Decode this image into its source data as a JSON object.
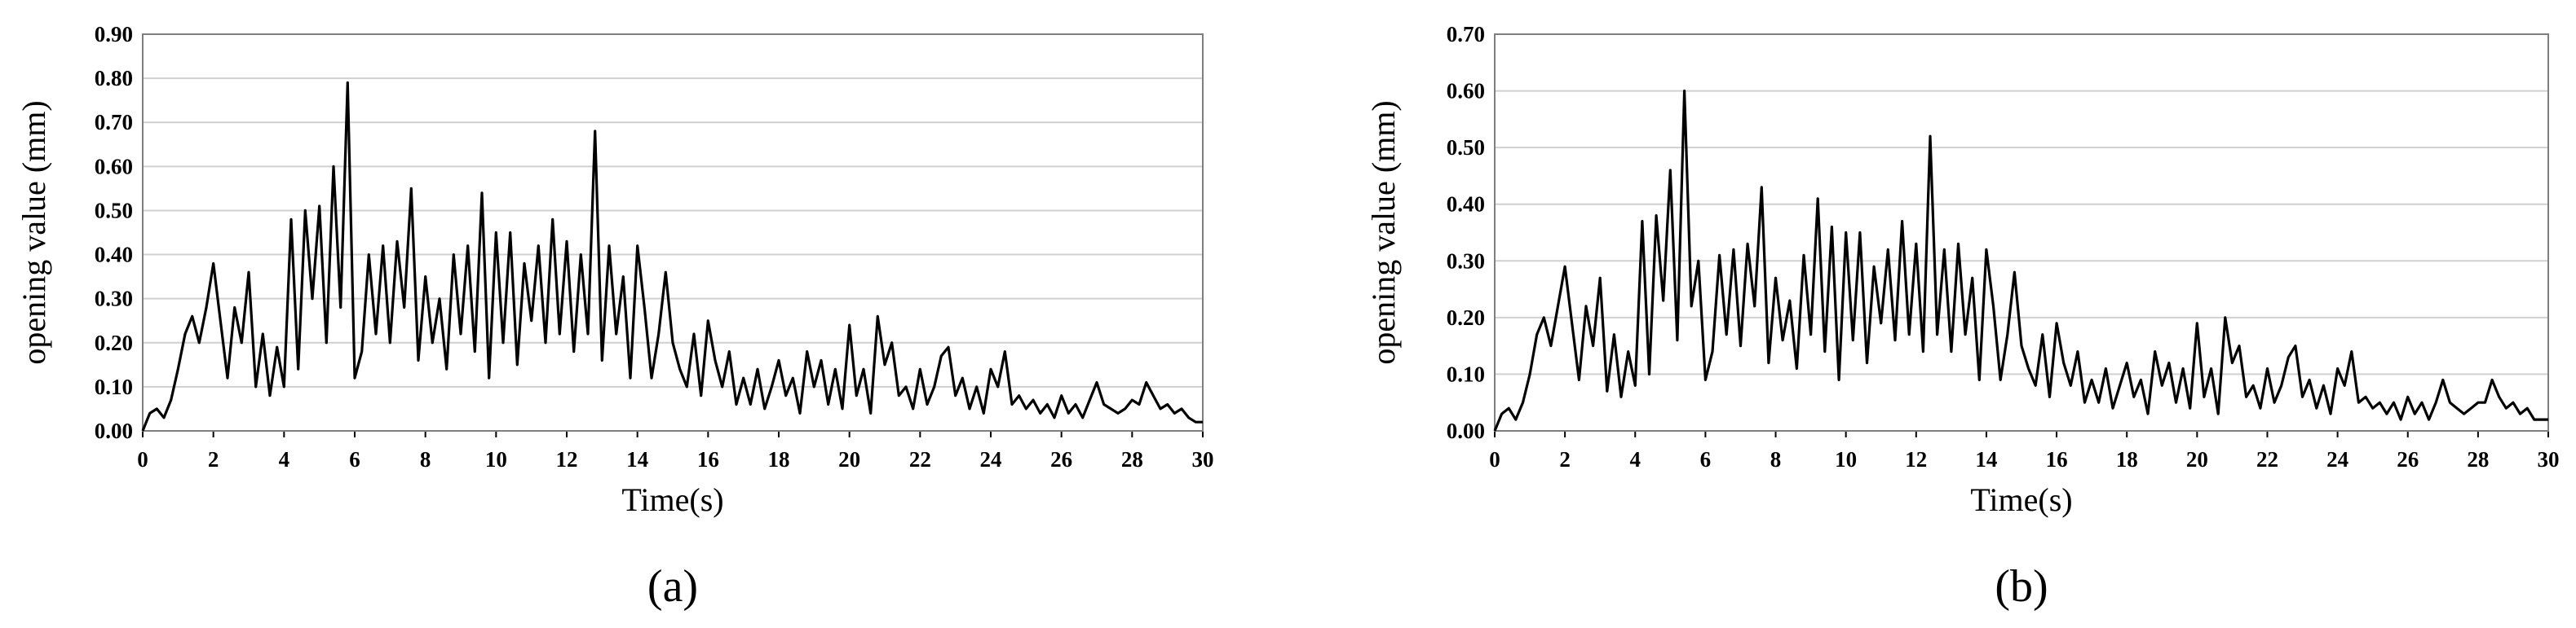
{
  "chart_data": [
    {
      "type": "line",
      "panel_label": "(a)",
      "xlabel": "Time(s)",
      "ylabel": "opening value (mm)",
      "xlim": [
        0,
        30
      ],
      "ylim": [
        0,
        0.9
      ],
      "xticks": [
        0,
        2,
        4,
        6,
        8,
        10,
        12,
        14,
        16,
        18,
        20,
        22,
        24,
        26,
        28,
        30
      ],
      "yticks": [
        "0.00",
        "0.10",
        "0.20",
        "0.30",
        "0.40",
        "0.50",
        "0.60",
        "0.70",
        "0.80",
        "0.90"
      ],
      "grid": "horizontal",
      "legend": "none",
      "color": "#000000",
      "series": [
        {
          "x": [
            0,
            0.2,
            0.4,
            0.6,
            0.8,
            1.0,
            1.2,
            1.4,
            1.6,
            1.8,
            2.0,
            2.2,
            2.4,
            2.6,
            2.8,
            3.0,
            3.2,
            3.4,
            3.6,
            3.8,
            4.0,
            4.2,
            4.4,
            4.6,
            4.8,
            5.0,
            5.2,
            5.4,
            5.6,
            5.8,
            6.0,
            6.2,
            6.4,
            6.6,
            6.8,
            7.0,
            7.2,
            7.4,
            7.6,
            7.8,
            8.0,
            8.2,
            8.4,
            8.6,
            8.8,
            9.0,
            9.2,
            9.4,
            9.6,
            9.8,
            10.0,
            10.2,
            10.4,
            10.6,
            10.8,
            11.0,
            11.2,
            11.4,
            11.6,
            11.8,
            12.0,
            12.2,
            12.4,
            12.6,
            12.8,
            13.0,
            13.2,
            13.4,
            13.6,
            13.8,
            14.0,
            14.2,
            14.4,
            14.6,
            14.8,
            15.0,
            15.2,
            15.4,
            15.6,
            15.8,
            16.0,
            16.2,
            16.4,
            16.6,
            16.8,
            17.0,
            17.2,
            17.4,
            17.6,
            17.8,
            18.0,
            18.2,
            18.4,
            18.6,
            18.8,
            19.0,
            19.2,
            19.4,
            19.6,
            19.8,
            20.0,
            20.2,
            20.4,
            20.6,
            20.8,
            21.0,
            21.2,
            21.4,
            21.6,
            21.8,
            22.0,
            22.2,
            22.4,
            22.6,
            22.8,
            23.0,
            23.2,
            23.4,
            23.6,
            23.8,
            24.0,
            24.2,
            24.4,
            24.6,
            24.8,
            25.0,
            25.2,
            25.4,
            25.6,
            25.8,
            26.0,
            26.2,
            26.4,
            26.6,
            26.8,
            27.0,
            27.2,
            27.4,
            27.6,
            27.8,
            28.0,
            28.2,
            28.4,
            28.6,
            28.8,
            29.0,
            29.2,
            29.4,
            29.6,
            29.8,
            30.0
          ],
          "y": [
            0.0,
            0.04,
            0.05,
            0.03,
            0.07,
            0.14,
            0.22,
            0.26,
            0.2,
            0.28,
            0.38,
            0.25,
            0.12,
            0.28,
            0.2,
            0.36,
            0.1,
            0.22,
            0.08,
            0.19,
            0.1,
            0.48,
            0.14,
            0.5,
            0.3,
            0.51,
            0.2,
            0.6,
            0.28,
            0.79,
            0.12,
            0.18,
            0.4,
            0.22,
            0.42,
            0.2,
            0.43,
            0.28,
            0.55,
            0.16,
            0.35,
            0.2,
            0.3,
            0.14,
            0.4,
            0.22,
            0.42,
            0.18,
            0.54,
            0.12,
            0.45,
            0.2,
            0.45,
            0.15,
            0.38,
            0.25,
            0.42,
            0.2,
            0.48,
            0.22,
            0.43,
            0.18,
            0.4,
            0.22,
            0.68,
            0.16,
            0.42,
            0.22,
            0.35,
            0.12,
            0.42,
            0.28,
            0.12,
            0.22,
            0.36,
            0.2,
            0.14,
            0.1,
            0.22,
            0.08,
            0.25,
            0.16,
            0.1,
            0.18,
            0.06,
            0.12,
            0.06,
            0.14,
            0.05,
            0.1,
            0.16,
            0.08,
            0.12,
            0.04,
            0.18,
            0.1,
            0.16,
            0.06,
            0.14,
            0.05,
            0.24,
            0.08,
            0.14,
            0.04,
            0.26,
            0.15,
            0.2,
            0.08,
            0.1,
            0.05,
            0.14,
            0.06,
            0.1,
            0.17,
            0.19,
            0.08,
            0.12,
            0.05,
            0.1,
            0.04,
            0.14,
            0.1,
            0.18,
            0.06,
            0.08,
            0.05,
            0.07,
            0.04,
            0.06,
            0.03,
            0.08,
            0.04,
            0.06,
            0.03,
            0.07,
            0.11,
            0.06,
            0.05,
            0.04,
            0.05,
            0.07,
            0.06,
            0.11,
            0.08,
            0.05,
            0.06,
            0.04,
            0.05,
            0.03,
            0.02,
            0.02
          ]
        }
      ]
    },
    {
      "type": "line",
      "panel_label": "(b)",
      "xlabel": "Time(s)",
      "ylabel": "opening value (mm)",
      "xlim": [
        0,
        30
      ],
      "ylim": [
        0,
        0.7
      ],
      "xticks": [
        0,
        2,
        4,
        6,
        8,
        10,
        12,
        14,
        16,
        18,
        20,
        22,
        24,
        26,
        28,
        30
      ],
      "yticks": [
        "0.00",
        "0.10",
        "0.20",
        "0.30",
        "0.40",
        "0.50",
        "0.60",
        "0.70"
      ],
      "grid": "horizontal",
      "legend": "none",
      "color": "#000000",
      "series": [
        {
          "x": [
            0,
            0.2,
            0.4,
            0.6,
            0.8,
            1.0,
            1.2,
            1.4,
            1.6,
            1.8,
            2.0,
            2.2,
            2.4,
            2.6,
            2.8,
            3.0,
            3.2,
            3.4,
            3.6,
            3.8,
            4.0,
            4.2,
            4.4,
            4.6,
            4.8,
            5.0,
            5.2,
            5.4,
            5.6,
            5.8,
            6.0,
            6.2,
            6.4,
            6.6,
            6.8,
            7.0,
            7.2,
            7.4,
            7.6,
            7.8,
            8.0,
            8.2,
            8.4,
            8.6,
            8.8,
            9.0,
            9.2,
            9.4,
            9.6,
            9.8,
            10.0,
            10.2,
            10.4,
            10.6,
            10.8,
            11.0,
            11.2,
            11.4,
            11.6,
            11.8,
            12.0,
            12.2,
            12.4,
            12.6,
            12.8,
            13.0,
            13.2,
            13.4,
            13.6,
            13.8,
            14.0,
            14.2,
            14.4,
            14.6,
            14.8,
            15.0,
            15.2,
            15.4,
            15.6,
            15.8,
            16.0,
            16.2,
            16.4,
            16.6,
            16.8,
            17.0,
            17.2,
            17.4,
            17.6,
            17.8,
            18.0,
            18.2,
            18.4,
            18.6,
            18.8,
            19.0,
            19.2,
            19.4,
            19.6,
            19.8,
            20.0,
            20.2,
            20.4,
            20.6,
            20.8,
            21.0,
            21.2,
            21.4,
            21.6,
            21.8,
            22.0,
            22.2,
            22.4,
            22.6,
            22.8,
            23.0,
            23.2,
            23.4,
            23.6,
            23.8,
            24.0,
            24.2,
            24.4,
            24.6,
            24.8,
            25.0,
            25.2,
            25.4,
            25.6,
            25.8,
            26.0,
            26.2,
            26.4,
            26.6,
            26.8,
            27.0,
            27.2,
            27.4,
            27.6,
            27.8,
            28.0,
            28.2,
            28.4,
            28.6,
            28.8,
            29.0,
            29.2,
            29.4,
            29.6,
            29.8,
            30.0
          ],
          "y": [
            0.0,
            0.03,
            0.04,
            0.02,
            0.05,
            0.1,
            0.17,
            0.2,
            0.15,
            0.22,
            0.29,
            0.19,
            0.09,
            0.22,
            0.15,
            0.27,
            0.07,
            0.17,
            0.06,
            0.14,
            0.08,
            0.37,
            0.1,
            0.38,
            0.23,
            0.46,
            0.16,
            0.6,
            0.22,
            0.3,
            0.09,
            0.14,
            0.31,
            0.17,
            0.32,
            0.15,
            0.33,
            0.22,
            0.43,
            0.12,
            0.27,
            0.16,
            0.23,
            0.11,
            0.31,
            0.17,
            0.41,
            0.14,
            0.36,
            0.09,
            0.35,
            0.16,
            0.35,
            0.12,
            0.29,
            0.19,
            0.32,
            0.16,
            0.37,
            0.17,
            0.33,
            0.14,
            0.52,
            0.17,
            0.32,
            0.14,
            0.33,
            0.17,
            0.27,
            0.09,
            0.32,
            0.22,
            0.09,
            0.17,
            0.28,
            0.15,
            0.11,
            0.08,
            0.17,
            0.06,
            0.19,
            0.12,
            0.08,
            0.14,
            0.05,
            0.09,
            0.05,
            0.11,
            0.04,
            0.08,
            0.12,
            0.06,
            0.09,
            0.03,
            0.14,
            0.08,
            0.12,
            0.05,
            0.11,
            0.04,
            0.19,
            0.06,
            0.11,
            0.03,
            0.2,
            0.12,
            0.15,
            0.06,
            0.08,
            0.04,
            0.11,
            0.05,
            0.08,
            0.13,
            0.15,
            0.06,
            0.09,
            0.04,
            0.08,
            0.03,
            0.11,
            0.08,
            0.14,
            0.05,
            0.06,
            0.04,
            0.05,
            0.03,
            0.05,
            0.02,
            0.06,
            0.03,
            0.05,
            0.02,
            0.05,
            0.09,
            0.05,
            0.04,
            0.03,
            0.04,
            0.05,
            0.05,
            0.09,
            0.06,
            0.04,
            0.05,
            0.03,
            0.04,
            0.02,
            0.02,
            0.02
          ]
        }
      ]
    }
  ]
}
